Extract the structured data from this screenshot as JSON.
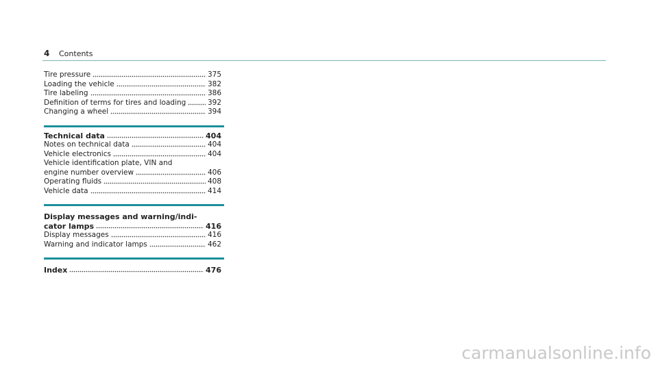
{
  "header": {
    "page_number": "4",
    "title": "Contents"
  },
  "sections": [
    {
      "heading": null,
      "entries": [
        {
          "lines": [
            "Tire pressure"
          ],
          "page": "375"
        },
        {
          "lines": [
            "Loading the vehicle"
          ],
          "page": "382"
        },
        {
          "lines": [
            "Tire labeling"
          ],
          "page": "386"
        },
        {
          "lines": [
            "Definition of terms for tires and loading"
          ],
          "page": "392"
        },
        {
          "lines": [
            "Changing a wheel"
          ],
          "page": "394"
        }
      ]
    },
    {
      "heading": {
        "lines": [
          "Technical data"
        ],
        "page": "404"
      },
      "entries": [
        {
          "lines": [
            "Notes on technical data"
          ],
          "page": "404"
        },
        {
          "lines": [
            "Vehicle electronics"
          ],
          "page": "404"
        },
        {
          "lines": [
            "Vehicle identification plate, VIN and",
            "engine number overview"
          ],
          "page": "406"
        },
        {
          "lines": [
            "Operating fluids"
          ],
          "page": "408"
        },
        {
          "lines": [
            "Vehicle data"
          ],
          "page": "414"
        }
      ]
    },
    {
      "heading": {
        "lines": [
          "Display messages and warning/indi-",
          "cator lamps"
        ],
        "page": "416"
      },
      "entries": [
        {
          "lines": [
            "Display messages"
          ],
          "page": "416"
        },
        {
          "lines": [
            "Warning and indicator lamps"
          ],
          "page": "462"
        }
      ]
    },
    {
      "heading": {
        "lines": [
          "Index"
        ],
        "page": "476"
      },
      "entries": []
    }
  ],
  "watermark": "carmanualsonline.info"
}
